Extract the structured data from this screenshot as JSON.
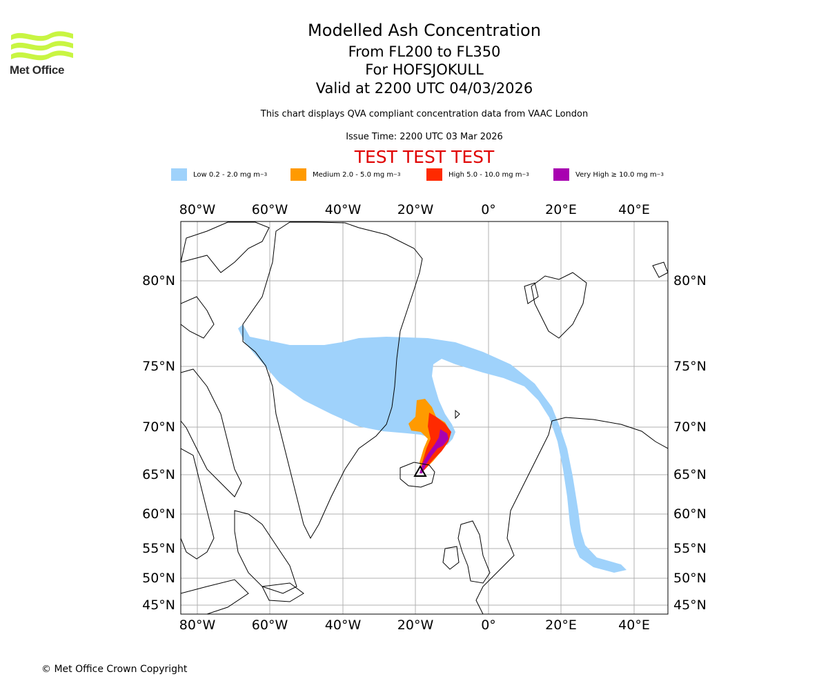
{
  "branding": {
    "logo_text": "Met Office",
    "logo_color": "#c8f542"
  },
  "header": {
    "title": "Modelled Ash Concentration",
    "levels": "From FL200 to FL350",
    "volcano": "For HOFSJOKULL",
    "valid": "Valid at 2200 UTC 04/03/2026",
    "description": "This chart displays QVA compliant concentration data from VAAC London",
    "issue_time": "Issue Time: 2200 UTC 03 Mar 2026",
    "test_banner": "TEST TEST TEST"
  },
  "legend": [
    {
      "label": "Low 0.2 - 2.0 mg m",
      "unit_sup": "−3",
      "color": "#9fd2fb"
    },
    {
      "label": "Medium 2.0 - 5.0 mg m",
      "unit_sup": "−3",
      "color": "#ff9a00"
    },
    {
      "label": "High 5.0 - 10.0 mg m",
      "unit_sup": "−3",
      "color": "#ff2a00"
    },
    {
      "label": "Very High  ≥  10.0 mg m",
      "unit_sup": "−3",
      "color": "#a800b0"
    }
  ],
  "map": {
    "lon_ticks": [
      "80°W",
      "60°W",
      "40°W",
      "20°W",
      "0°",
      "20°E",
      "40°E"
    ],
    "lat_ticks": [
      "80°N",
      "75°N",
      "70°N",
      "65°N",
      "60°N",
      "55°N",
      "50°N",
      "45°N"
    ],
    "volcano_marker": "triangle-icon"
  },
  "footer": {
    "copyright": "© Met Office Crown Copyright"
  }
}
